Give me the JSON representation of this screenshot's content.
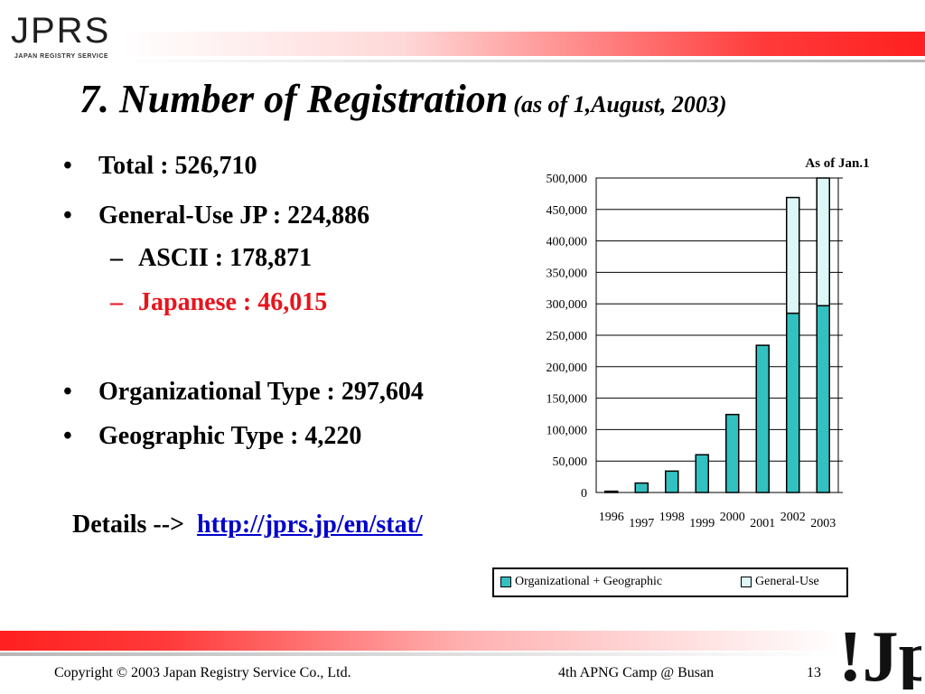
{
  "header": {
    "logo_text": "JPRS",
    "logo_sub": "JAPAN REGISTRY SERVICE",
    "title": "7. Number of Registration",
    "title_sub": "(as of 1,August, 2003)"
  },
  "bullets": [
    {
      "marker": "•",
      "text": "Total : 526,710"
    },
    {
      "marker": "•",
      "text": "General-Use JP : 224,886"
    },
    {
      "marker": "–",
      "text": "ASCII : 178,871"
    },
    {
      "marker": "–",
      "text": "Japanese : 46,015"
    },
    {
      "marker": "•",
      "text": "Organizational Type : 297,604"
    },
    {
      "marker": "•",
      "text": "Geographic Type : 4,220"
    }
  ],
  "details": {
    "label": "Details -->",
    "link": "http://jprs.jp/en/stat/"
  },
  "chart_data": {
    "type": "bar",
    "stacked": true,
    "annotation": "As of Jan.1",
    "categories": [
      "1996",
      "1997",
      "1998",
      "1999",
      "2000",
      "2001",
      "2002",
      "2003"
    ],
    "series": [
      {
        "name": "Organizational + Geographic",
        "color": "#33c0c0",
        "values": [
          2000,
          15000,
          34000,
          60000,
          124000,
          234000,
          285000,
          297000
        ]
      },
      {
        "name": "General-Use",
        "color": "#ddf6f6",
        "values": [
          0,
          0,
          0,
          0,
          0,
          0,
          184000,
          203000
        ]
      }
    ],
    "yticks": [
      "0",
      "50,000",
      "100,000",
      "150,000",
      "200,000",
      "250,000",
      "300,000",
      "350,000",
      "400,000",
      "450,000",
      "500,000"
    ],
    "ylim": [
      0,
      500000
    ],
    "grid": true,
    "legend_position": "bottom"
  },
  "footer": {
    "copyright": "Copyright © 2003 Japan Registry Service Co., Ltd.",
    "event": "4th APNG Camp @ Busan",
    "page": "13"
  },
  "jp_logo": "!Jp"
}
